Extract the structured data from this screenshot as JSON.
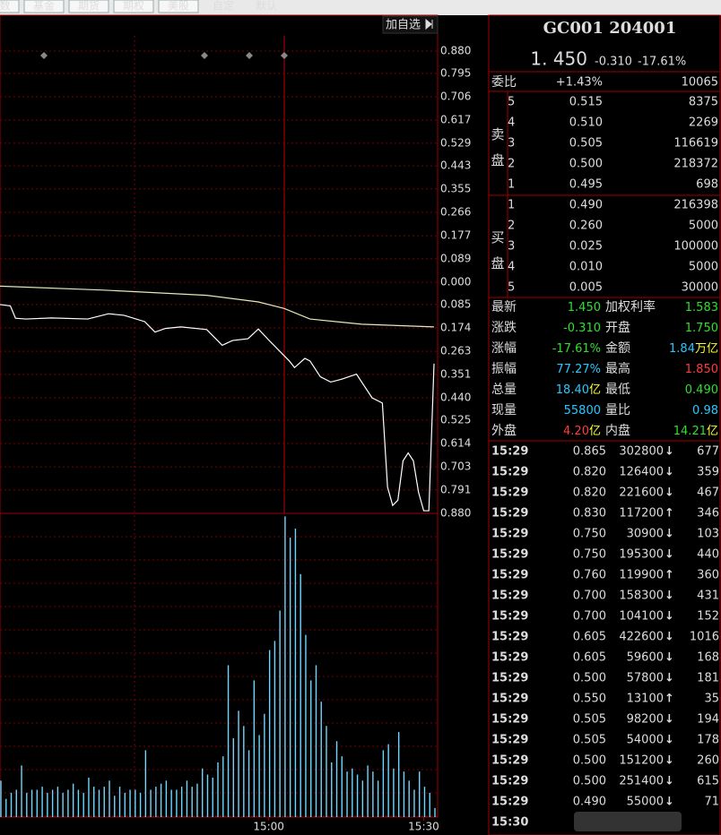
{
  "tabs": [
    "数",
    "基金",
    "期货",
    "期权",
    "美股",
    "自定",
    "默认"
  ],
  "chart": {
    "button": "加自选",
    "ylim": [
      -0.88,
      0.88
    ],
    "yticks": [
      {
        "value": 0.88,
        "label": "0.880"
      },
      {
        "value": 0.795,
        "label": "0.795"
      },
      {
        "value": 0.706,
        "label": "0.706"
      },
      {
        "value": 0.617,
        "label": "0.617"
      },
      {
        "value": 0.529,
        "label": "0.529"
      },
      {
        "value": 0.443,
        "label": "0.443"
      },
      {
        "value": 0.355,
        "label": "0.355"
      },
      {
        "value": 0.266,
        "label": "0.266"
      },
      {
        "value": 0.177,
        "label": "0.177"
      },
      {
        "value": 0.089,
        "label": "0.089"
      },
      {
        "value": 0,
        "label": "0.000"
      },
      {
        "value": -0.085,
        "label": "0.085"
      },
      {
        "value": -0.174,
        "label": "0.174"
      },
      {
        "value": -0.263,
        "label": "0.263"
      },
      {
        "value": -0.351,
        "label": "0.351"
      },
      {
        "value": -0.44,
        "label": "0.440"
      },
      {
        "value": -0.525,
        "label": "0.525"
      },
      {
        "value": -0.614,
        "label": "0.614"
      },
      {
        "value": -0.703,
        "label": "0.703"
      },
      {
        "value": -0.791,
        "label": "0.791"
      },
      {
        "value": -0.88,
        "label": "0.880"
      }
    ],
    "xlim": [
      0,
      84
    ],
    "xticks": [
      {
        "value": 52,
        "label": "15:00"
      },
      {
        "value": 82,
        "label": "15:30"
      }
    ],
    "price": {
      "color": "#ffffff",
      "x": [
        0,
        2,
        3,
        5,
        10,
        17,
        21,
        24,
        28,
        30,
        32,
        35,
        40,
        43,
        45,
        48,
        50,
        52,
        56,
        57,
        59,
        60,
        62,
        64,
        66,
        69,
        70,
        72,
        74,
        75,
        76,
        77,
        78,
        79,
        80,
        81,
        82,
        83,
        84
      ],
      "values": [
        -0.085,
        -0.09,
        -0.137,
        -0.14,
        -0.136,
        -0.14,
        -0.12,
        -0.126,
        -0.15,
        -0.19,
        -0.176,
        -0.17,
        -0.18,
        -0.24,
        -0.222,
        -0.215,
        -0.178,
        -0.22,
        -0.3,
        -0.325,
        -0.29,
        -0.3,
        -0.36,
        -0.38,
        -0.37,
        -0.35,
        -0.38,
        -0.44,
        -0.46,
        -0.78,
        -0.85,
        -0.83,
        -0.68,
        -0.65,
        -0.68,
        -0.8,
        -0.87,
        -0.87,
        -0.31
      ]
    },
    "average": {
      "color": "#e8e8b8",
      "x": [
        0,
        20,
        40,
        50,
        55,
        60,
        70,
        84
      ],
      "values": [
        -0.015,
        -0.03,
        -0.05,
        -0.075,
        -0.1,
        -0.14,
        -0.16,
        -0.17
      ]
    },
    "volume": {
      "color": "#6fd6ff",
      "ylim": [
        0,
        100
      ],
      "values": [
        12,
        6,
        8,
        9,
        17,
        8,
        9,
        9,
        10,
        8,
        9,
        10,
        8,
        9,
        11,
        9,
        8,
        13,
        10,
        9,
        10,
        12,
        7,
        10,
        8,
        9,
        9,
        8,
        22,
        9,
        10,
        11,
        12,
        9,
        9,
        10,
        12,
        10,
        11,
        16,
        14,
        13,
        18,
        20,
        50,
        26,
        35,
        30,
        22,
        45,
        27,
        34,
        55,
        58,
        68,
        99,
        92,
        95,
        80,
        60,
        45,
        50,
        38,
        30,
        18,
        25,
        20,
        15,
        16,
        14,
        12,
        17,
        15,
        12,
        22,
        24,
        16,
        28,
        15,
        12,
        9,
        15,
        10,
        8,
        3
      ]
    }
  },
  "quote": {
    "title": "GC001 204001",
    "price": "1. 450",
    "change": "-0.310",
    "change_pct": "-17.61%",
    "ratio_label": "委比",
    "ratio_pct": "+1.43%",
    "ratio_diff": "10065",
    "sell_label": "卖盘",
    "buy_label": "买盘",
    "sell": [
      {
        "level": "5",
        "price": "0.515",
        "volume": "8375"
      },
      {
        "level": "4",
        "price": "0.510",
        "volume": "2269"
      },
      {
        "level": "3",
        "price": "0.505",
        "volume": "116619"
      },
      {
        "level": "2",
        "price": "0.500",
        "volume": "218372"
      },
      {
        "level": "1",
        "price": "0.495",
        "volume": "698"
      }
    ],
    "buy": [
      {
        "level": "1",
        "price": "0.490",
        "volume": "216398"
      },
      {
        "level": "2",
        "price": "0.260",
        "volume": "5000"
      },
      {
        "level": "3",
        "price": "0.025",
        "volume": "100000"
      },
      {
        "level": "4",
        "price": "0.010",
        "volume": "5000"
      },
      {
        "level": "5",
        "price": "0.005",
        "volume": "30000"
      }
    ],
    "stats": [
      [
        {
          "label": "最新",
          "value": "1.450",
          "color": "#2ee02e"
        },
        {
          "label": "加权利率",
          "value": "1.583",
          "color": "#2ee02e"
        }
      ],
      [
        {
          "label": "涨跌",
          "value": "-0.310",
          "color": "#2ee02e"
        },
        {
          "label": "开盘",
          "value": "1.750",
          "color": "#2ee02e"
        }
      ],
      [
        {
          "label": "涨幅",
          "value": "-17.61%",
          "color": "#2ee02e"
        },
        {
          "label": "金额",
          "value": "1.84",
          "unit": "万亿",
          "color": "#28c8ff"
        }
      ],
      [
        {
          "label": "振幅",
          "value": "77.27%",
          "color": "#28c8ff"
        },
        {
          "label": "最高",
          "value": "1.850",
          "color": "#ff3b3b"
        }
      ],
      [
        {
          "label": "总量",
          "value": "18.40",
          "unit": "亿",
          "color": "#28c8ff"
        },
        {
          "label": "最低",
          "value": "0.490",
          "color": "#2ee02e"
        }
      ],
      [
        {
          "label": "现量",
          "value": "55800",
          "color": "#28c8ff"
        },
        {
          "label": "量比",
          "value": "0.98",
          "color": "#28c8ff"
        }
      ],
      [
        {
          "label": "外盘",
          "value": "4.20",
          "unit": "亿",
          "color": "#ff3b3b"
        },
        {
          "label": "内盘",
          "value": "14.21",
          "unit": "亿",
          "color": "#2ee02e"
        }
      ]
    ],
    "trades": [
      {
        "time": "15:29",
        "price": "0.865",
        "volume": "302800",
        "arrow": "↓",
        "count": "677",
        "color": "#2ee02e"
      },
      {
        "time": "15:29",
        "price": "0.820",
        "volume": "126400",
        "arrow": "↓",
        "count": "359",
        "color": "#2ee02e"
      },
      {
        "time": "15:29",
        "price": "0.820",
        "volume": "221600",
        "arrow": "↓",
        "count": "467",
        "color": "#2ee02e"
      },
      {
        "time": "15:29",
        "price": "0.830",
        "volume": "117200",
        "arrow": "↑",
        "count": "346",
        "color": "#ffffff"
      },
      {
        "time": "15:29",
        "price": "0.750",
        "volume": "30900",
        "arrow": "↓",
        "count": "103",
        "color": "#2ee02e"
      },
      {
        "time": "15:29",
        "price": "0.750",
        "volume": "195300",
        "arrow": "↓",
        "count": "440",
        "color": "#2ee02e"
      },
      {
        "time": "15:29",
        "price": "0.760",
        "volume": "119900",
        "arrow": "↑",
        "count": "360",
        "color": "#ffffff"
      },
      {
        "time": "15:29",
        "price": "0.700",
        "volume": "158300",
        "arrow": "↓",
        "count": "431",
        "color": "#2ee02e"
      },
      {
        "time": "15:29",
        "price": "0.700",
        "volume": "104100",
        "arrow": "↓",
        "count": "152",
        "color": "#2ee02e"
      },
      {
        "time": "15:29",
        "price": "0.605",
        "volume": "422600",
        "arrow": "↓",
        "count": "1016",
        "color": "#2ee02e"
      },
      {
        "time": "15:29",
        "price": "0.605",
        "volume": "59600",
        "arrow": "↓",
        "count": "168",
        "color": "#2ee02e"
      },
      {
        "time": "15:29",
        "price": "0.500",
        "volume": "57800",
        "arrow": "↓",
        "count": "181",
        "color": "#2ee02e"
      },
      {
        "time": "15:29",
        "price": "0.550",
        "volume": "13100",
        "arrow": "↑",
        "count": "35",
        "color": "#ffffff"
      },
      {
        "time": "15:29",
        "price": "0.505",
        "volume": "98200",
        "arrow": "↓",
        "count": "194",
        "color": "#2ee02e"
      },
      {
        "time": "15:29",
        "price": "0.505",
        "volume": "54000",
        "arrow": "↓",
        "count": "178",
        "color": "#2ee02e"
      },
      {
        "time": "15:29",
        "price": "0.500",
        "volume": "151200",
        "arrow": "↓",
        "count": "260",
        "color": "#2ee02e"
      },
      {
        "time": "15:29",
        "price": "0.500",
        "volume": "251400",
        "arrow": "↓",
        "count": "615",
        "color": "#2ee02e"
      },
      {
        "time": "15:29",
        "price": "0.490",
        "volume": "55000",
        "arrow": "↓",
        "count": "71",
        "color": "#2ee02e"
      },
      {
        "time": "15:30"
      }
    ]
  }
}
